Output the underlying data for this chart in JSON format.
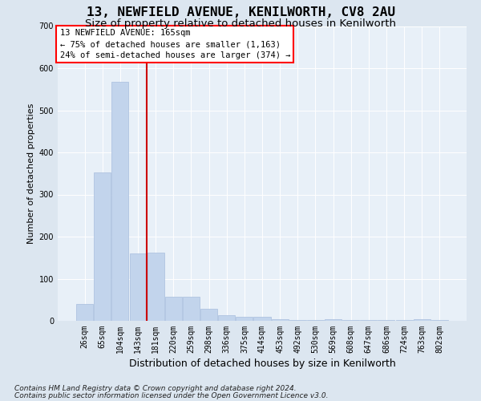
{
  "title": "13, NEWFIELD AVENUE, KENILWORTH, CV8 2AU",
  "subtitle": "Size of property relative to detached houses in Kenilworth",
  "xlabel": "Distribution of detached houses by size in Kenilworth",
  "ylabel": "Number of detached properties",
  "categories": [
    "26sqm",
    "65sqm",
    "104sqm",
    "143sqm",
    "181sqm",
    "220sqm",
    "259sqm",
    "298sqm",
    "336sqm",
    "375sqm",
    "414sqm",
    "453sqm",
    "492sqm",
    "530sqm",
    "569sqm",
    "608sqm",
    "647sqm",
    "686sqm",
    "724sqm",
    "763sqm",
    "802sqm"
  ],
  "values": [
    40,
    352,
    568,
    160,
    162,
    57,
    57,
    28,
    13,
    9,
    9,
    4,
    2,
    2,
    4,
    2,
    2,
    2,
    2,
    4,
    2
  ],
  "bar_color": "#c2d4ec",
  "bar_edge_color": "#a8bedd",
  "vline_color": "#cc0000",
  "vline_x": 3.5,
  "annotation_line1": "13 NEWFIELD AVENUE: 165sqm",
  "annotation_line2": "← 75% of detached houses are smaller (1,163)",
  "annotation_line3": "24% of semi-detached houses are larger (374) →",
  "footnote1": "Contains HM Land Registry data © Crown copyright and database right 2024.",
  "footnote2": "Contains public sector information licensed under the Open Government Licence v3.0.",
  "ylim": [
    0,
    700
  ],
  "yticks": [
    0,
    100,
    200,
    300,
    400,
    500,
    600,
    700
  ],
  "bg_color": "#dce6f0",
  "plot_bg_color": "#e8f0f8",
  "title_fontsize": 11.5,
  "subtitle_fontsize": 9.5,
  "xlabel_fontsize": 9,
  "ylabel_fontsize": 8,
  "tick_fontsize": 7,
  "annot_fontsize": 7.5,
  "footnote_fontsize": 6.5
}
